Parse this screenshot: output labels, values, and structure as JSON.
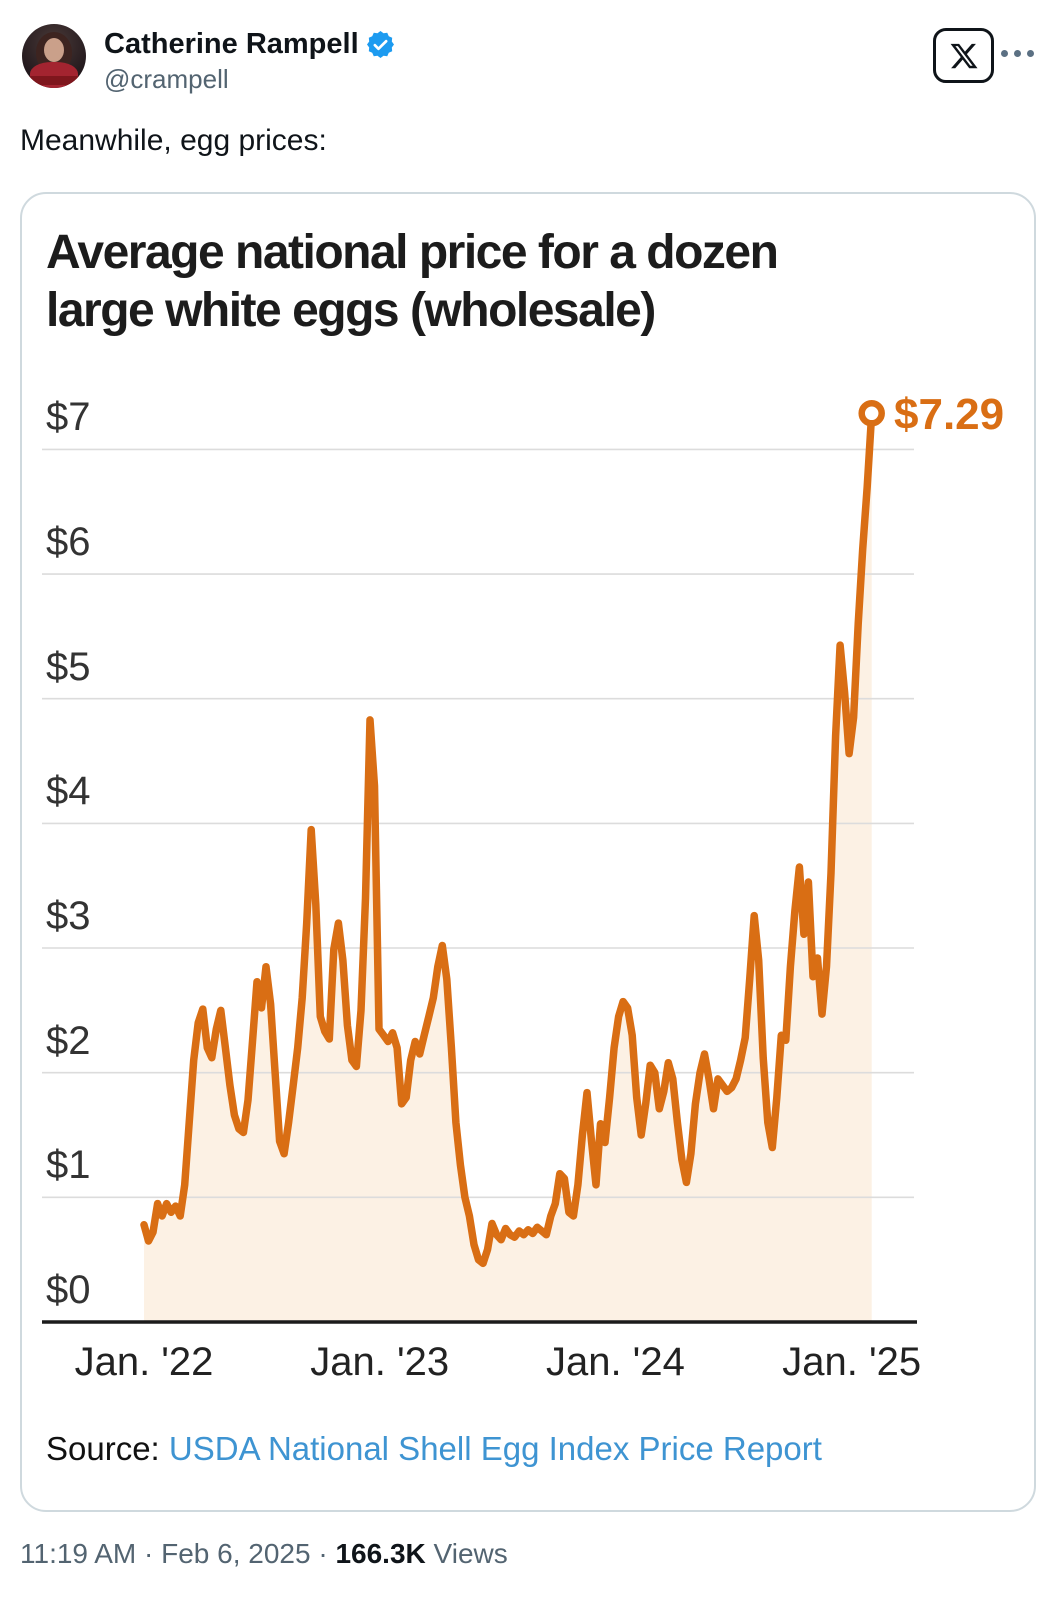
{
  "header": {
    "name": "Catherine Rampell",
    "handle": "@crampell",
    "verified_color": "#1d9bf0"
  },
  "tweet": {
    "text": "Meanwhile, egg prices:"
  },
  "chart_data": {
    "type": "line",
    "title": "Average national price for a dozen large white eggs (wholesale)",
    "title_lines": [
      "Average national price for a dozen",
      "large white eggs (wholesale)"
    ],
    "end_label": "$7.29",
    "end_value": 7.29,
    "source_prefix": "Source:",
    "source_link": "USDA National Shell Egg Index Price Report",
    "ylim": [
      0,
      7.29
    ],
    "grid": true,
    "y_ticks": [
      {
        "label": "$7",
        "value": 7
      },
      {
        "label": "$6",
        "value": 6
      },
      {
        "label": "$5",
        "value": 5
      },
      {
        "label": "$4",
        "value": 4
      },
      {
        "label": "$3",
        "value": 3
      },
      {
        "label": "$2",
        "value": 2
      },
      {
        "label": "$1",
        "value": 1
      },
      {
        "label": "$0",
        "value": 0
      }
    ],
    "x_ticks": [
      {
        "label": "Jan. '22",
        "week": 0
      },
      {
        "label": "Jan. '23",
        "week": 52.14
      },
      {
        "label": "Jan. '24",
        "week": 104.3
      },
      {
        "label": "Jan. '25",
        "week": 156.57
      }
    ],
    "series": {
      "name": "Wholesale price per dozen (USD)",
      "cadence": "weekly",
      "start": "Jan 2022",
      "end": "Feb 6, 2025",
      "values": [
        0.78,
        0.65,
        0.72,
        0.95,
        0.85,
        0.95,
        0.88,
        0.93,
        0.85,
        1.1,
        1.6,
        2.1,
        2.4,
        2.51,
        2.2,
        2.12,
        2.35,
        2.5,
        2.2,
        1.9,
        1.66,
        1.55,
        1.52,
        1.78,
        2.25,
        2.73,
        2.52,
        2.85,
        2.55,
        2.0,
        1.45,
        1.35,
        1.6,
        1.9,
        2.2,
        2.6,
        3.2,
        3.95,
        3.35,
        2.45,
        2.33,
        2.27,
        2.99,
        3.2,
        2.9,
        2.38,
        2.1,
        2.05,
        2.5,
        3.4,
        4.83,
        4.3,
        2.35,
        2.3,
        2.25,
        2.32,
        2.2,
        1.75,
        1.8,
        2.1,
        2.25,
        2.15,
        2.3,
        2.45,
        2.6,
        2.85,
        3.02,
        2.75,
        2.2,
        1.6,
        1.26,
        1.0,
        0.85,
        0.62,
        0.5,
        0.47,
        0.58,
        0.79,
        0.7,
        0.66,
        0.75,
        0.7,
        0.68,
        0.73,
        0.7,
        0.74,
        0.71,
        0.76,
        0.73,
        0.7,
        0.85,
        0.95,
        1.19,
        1.15,
        0.88,
        0.85,
        1.1,
        1.5,
        1.84,
        1.45,
        1.1,
        1.59,
        1.44,
        1.8,
        2.2,
        2.45,
        2.57,
        2.52,
        2.3,
        1.8,
        1.5,
        1.75,
        2.06,
        2.0,
        1.71,
        1.85,
        2.08,
        1.95,
        1.6,
        1.3,
        1.12,
        1.35,
        1.75,
        2.0,
        2.15,
        1.95,
        1.71,
        1.95,
        1.9,
        1.85,
        1.88,
        1.95,
        2.1,
        2.28,
        2.75,
        3.26,
        2.9,
        2.12,
        1.6,
        1.4,
        1.8,
        2.3,
        2.26,
        2.85,
        3.3,
        3.65,
        3.11,
        3.53,
        2.77,
        2.92,
        2.47,
        2.85,
        3.6,
        4.7,
        5.43,
        5.05,
        4.56,
        4.85,
        5.6,
        6.2,
        6.7,
        7.29
      ]
    },
    "colors": {
      "line": "#d96e14",
      "fill": "#fcf1e4",
      "grid": "#dcdcdc",
      "axis": "#1b1b1b",
      "y_label": "#333333",
      "x_label": "#222222",
      "end_label": "#d96e14",
      "link": "#3e94d2"
    }
  },
  "footer": {
    "time": "11:19 AM",
    "date": "Feb 6, 2025",
    "separator": "·",
    "views_count": "166.3K",
    "views_label": "Views"
  }
}
